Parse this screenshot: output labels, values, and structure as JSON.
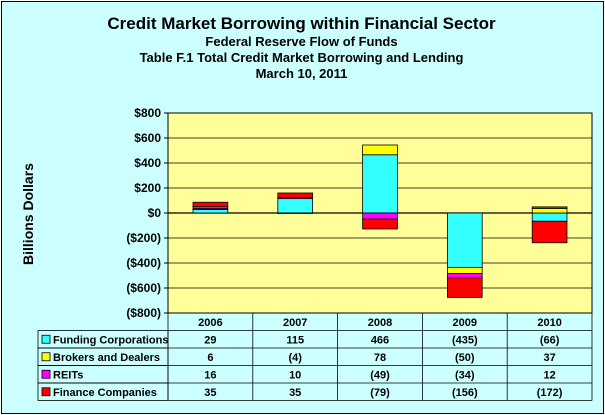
{
  "chart_data": {
    "type": "bar",
    "stacked": true,
    "title": "Credit Market Borrowing within Financial Sector",
    "subtitle_lines": [
      "Federal Reserve Flow of Funds",
      "Table F.1 Total Credit Market Borrowing and Lending",
      "March 10, 2011"
    ],
    "ylabel": "Billions Dollars",
    "ylim": [
      -800,
      800
    ],
    "ytick_labels": [
      "$800",
      "$600",
      "$400",
      "$200",
      "$0",
      "($200)",
      "($400)",
      "($600)",
      "($800)"
    ],
    "grid": true,
    "legend_placement": "data-table-left",
    "categories": [
      "2006",
      "2007",
      "2008",
      "2009",
      "2010"
    ],
    "series": [
      {
        "name": "Funding Corporations",
        "color": "#33ffff",
        "values": [
          29,
          115,
          466,
          -435,
          -66
        ],
        "labels": [
          "29",
          "115",
          "466",
          "(435)",
          "(66)"
        ]
      },
      {
        "name": "Brokers and Dealers",
        "color": "#ffff00",
        "values": [
          6,
          -4,
          78,
          -50,
          37
        ],
        "labels": [
          "6",
          "(4)",
          "78",
          "(50)",
          "37"
        ]
      },
      {
        "name": "REITs",
        "color": "#ff00ff",
        "values": [
          16,
          10,
          -49,
          -34,
          12
        ],
        "labels": [
          "16",
          "10",
          "(49)",
          "(34)",
          "12"
        ]
      },
      {
        "name": "Finance Companies",
        "color": "#ff0000",
        "values": [
          35,
          35,
          -79,
          -156,
          -172
        ],
        "labels": [
          "35",
          "35",
          "(79)",
          "(156)",
          "(172)"
        ]
      }
    ]
  },
  "colors": {
    "frame_bg": "#ccffff",
    "plot_bg": "#ffff99",
    "grid": "#000000"
  }
}
